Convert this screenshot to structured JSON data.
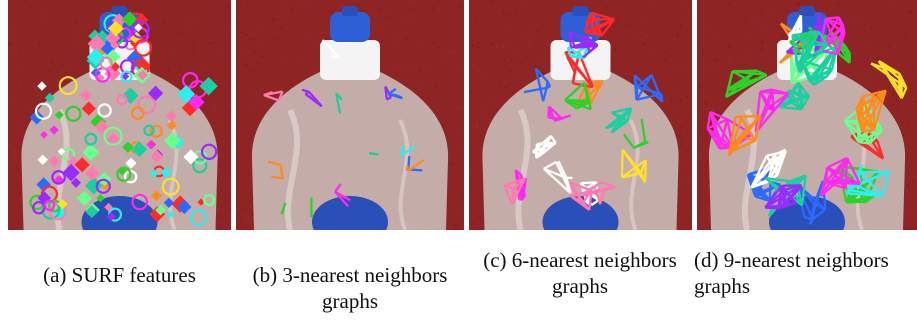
{
  "figure": {
    "panels": [
      {
        "id": "a",
        "caption": "(a) SURF features",
        "overlay": "features"
      },
      {
        "id": "b",
        "caption": "(b) 3-nearest neighbors graphs",
        "overlay": "graph",
        "k": 3
      },
      {
        "id": "c",
        "caption": "(c) 6-nearest neighbors graphs",
        "overlay": "graph",
        "k": 6
      },
      {
        "id": "d",
        "caption": "(d) 9-nearest neighbors graphs",
        "overlay": "graph",
        "k": 9
      }
    ],
    "colors": {
      "background": "#8e2424",
      "bottle_body": "#cfcbc6",
      "cap_white": "#f4f4f4",
      "cap_blue": "#2f5fd6",
      "label_blue": "#2a4fb8"
    },
    "marker_palette": [
      "#ff2a2a",
      "#2ad22a",
      "#2a6bff",
      "#ffe02a",
      "#ff2af0",
      "#2af0f0",
      "#ff8c1a",
      "#9b2aff",
      "#6bff8c",
      "#ffffff",
      "#ff7ab0",
      "#1ad0a0"
    ]
  }
}
